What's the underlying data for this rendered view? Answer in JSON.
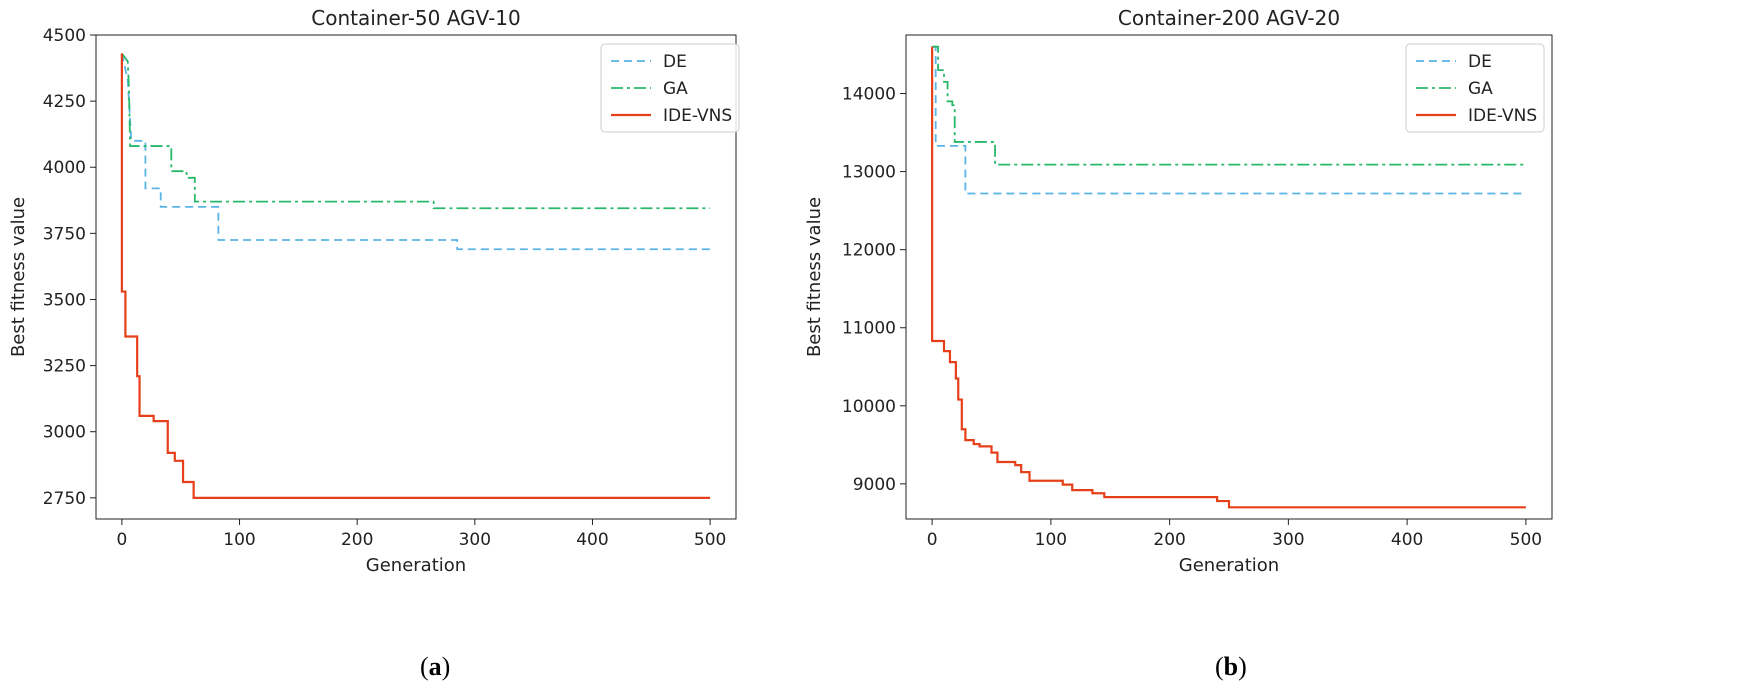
{
  "colors": {
    "DE": "#5ab4e5",
    "GA": "#27b86a",
    "IDE-VNS": "#e5401a",
    "axis": "#222222"
  },
  "panel_labels": {
    "a": {
      "open": "(",
      "letter": "a",
      "close": ")"
    },
    "b": {
      "open": "(",
      "letter": "b",
      "close": ")"
    }
  },
  "chart_data": [
    {
      "type": "line",
      "title": "Container-50 AGV-10",
      "xlabel": "Generation",
      "ylabel": "Best fitness value",
      "xlim": [
        -22,
        522
      ],
      "ylim": [
        2670,
        4500
      ],
      "xticks": [
        0,
        100,
        200,
        300,
        400,
        500
      ],
      "yticks": [
        2750,
        3000,
        3250,
        3500,
        3750,
        4000,
        4250,
        4500
      ],
      "yticklabels": [
        "2750",
        "3000",
        "3250",
        "3500",
        "3750",
        "4000",
        "4250",
        "4500"
      ],
      "legend_position": "top-right",
      "series": [
        {
          "name": "DE",
          "style": "dashed",
          "points": [
            [
              0,
              4430
            ],
            [
              5,
              4330
            ],
            [
              8,
              4100
            ],
            [
              20,
              4100
            ],
            [
              20,
              3920
            ],
            [
              33,
              3920
            ],
            [
              33,
              3850
            ],
            [
              82,
              3850
            ],
            [
              82,
              3725
            ],
            [
              285,
              3725
            ],
            [
              285,
              3690
            ],
            [
              500,
              3690
            ]
          ]
        },
        {
          "name": "GA",
          "style": "dashdot",
          "points": [
            [
              0,
              4430
            ],
            [
              5,
              4400
            ],
            [
              6,
              4300
            ],
            [
              7,
              4080
            ],
            [
              42,
              4080
            ],
            [
              42,
              3985
            ],
            [
              55,
              3985
            ],
            [
              55,
              3960
            ],
            [
              62,
              3960
            ],
            [
              62,
              3870
            ],
            [
              265,
              3870
            ],
            [
              265,
              3845
            ],
            [
              500,
              3845
            ]
          ]
        },
        {
          "name": "IDE-VNS",
          "style": "solid",
          "points": [
            [
              0,
              4430
            ],
            [
              0,
              3530
            ],
            [
              3,
              3530
            ],
            [
              3,
              3360
            ],
            [
              13,
              3360
            ],
            [
              13,
              3210
            ],
            [
              15,
              3210
            ],
            [
              15,
              3060
            ],
            [
              27,
              3060
            ],
            [
              27,
              3040
            ],
            [
              39,
              3040
            ],
            [
              39,
              2920
            ],
            [
              45,
              2920
            ],
            [
              45,
              2890
            ],
            [
              52,
              2890
            ],
            [
              52,
              2810
            ],
            [
              61,
              2810
            ],
            [
              61,
              2750
            ],
            [
              500,
              2750
            ]
          ]
        }
      ]
    },
    {
      "type": "line",
      "title": "Container-200 AGV-20",
      "xlabel": "Generation",
      "ylabel": "Best fitness value",
      "xlim": [
        -22,
        522
      ],
      "ylim": [
        8550,
        14750
      ],
      "xticks": [
        0,
        100,
        200,
        300,
        400,
        500
      ],
      "yticks": [
        9000,
        10000,
        11000,
        12000,
        13000,
        14000
      ],
      "yticklabels": [
        "9000",
        "10000",
        "11000",
        "12000",
        "13000",
        "14000"
      ],
      "legend_position": "top-right",
      "series": [
        {
          "name": "DE",
          "style": "dashed",
          "points": [
            [
              0,
              14600
            ],
            [
              3,
              14600
            ],
            [
              3,
              13330
            ],
            [
              28,
              13330
            ],
            [
              28,
              12720
            ],
            [
              500,
              12720
            ]
          ]
        },
        {
          "name": "GA",
          "style": "dashdot",
          "points": [
            [
              0,
              14600
            ],
            [
              5,
              14600
            ],
            [
              5,
              14300
            ],
            [
              10,
              14300
            ],
            [
              10,
              14150
            ],
            [
              13,
              14150
            ],
            [
              13,
              13900
            ],
            [
              17,
              13900
            ],
            [
              17,
              13850
            ],
            [
              19,
              13850
            ],
            [
              19,
              13380
            ],
            [
              53,
              13380
            ],
            [
              53,
              13090
            ],
            [
              500,
              13090
            ]
          ]
        },
        {
          "name": "IDE-VNS",
          "style": "solid",
          "points": [
            [
              0,
              14600
            ],
            [
              0,
              10830
            ],
            [
              10,
              10830
            ],
            [
              10,
              10700
            ],
            [
              15,
              10700
            ],
            [
              15,
              10560
            ],
            [
              20,
              10560
            ],
            [
              20,
              10350
            ],
            [
              22,
              10350
            ],
            [
              22,
              10080
            ],
            [
              25,
              10080
            ],
            [
              25,
              9700
            ],
            [
              28,
              9700
            ],
            [
              28,
              9560
            ],
            [
              35,
              9560
            ],
            [
              35,
              9510
            ],
            [
              40,
              9510
            ],
            [
              40,
              9480
            ],
            [
              50,
              9480
            ],
            [
              50,
              9400
            ],
            [
              55,
              9400
            ],
            [
              55,
              9280
            ],
            [
              70,
              9280
            ],
            [
              70,
              9240
            ],
            [
              75,
              9240
            ],
            [
              75,
              9150
            ],
            [
              82,
              9150
            ],
            [
              82,
              9040
            ],
            [
              110,
              9040
            ],
            [
              110,
              8990
            ],
            [
              118,
              8990
            ],
            [
              118,
              8920
            ],
            [
              135,
              8920
            ],
            [
              135,
              8880
            ],
            [
              145,
              8880
            ],
            [
              145,
              8830
            ],
            [
              240,
              8830
            ],
            [
              240,
              8780
            ],
            [
              250,
              8780
            ],
            [
              250,
              8700
            ],
            [
              500,
              8700
            ]
          ]
        }
      ]
    }
  ]
}
